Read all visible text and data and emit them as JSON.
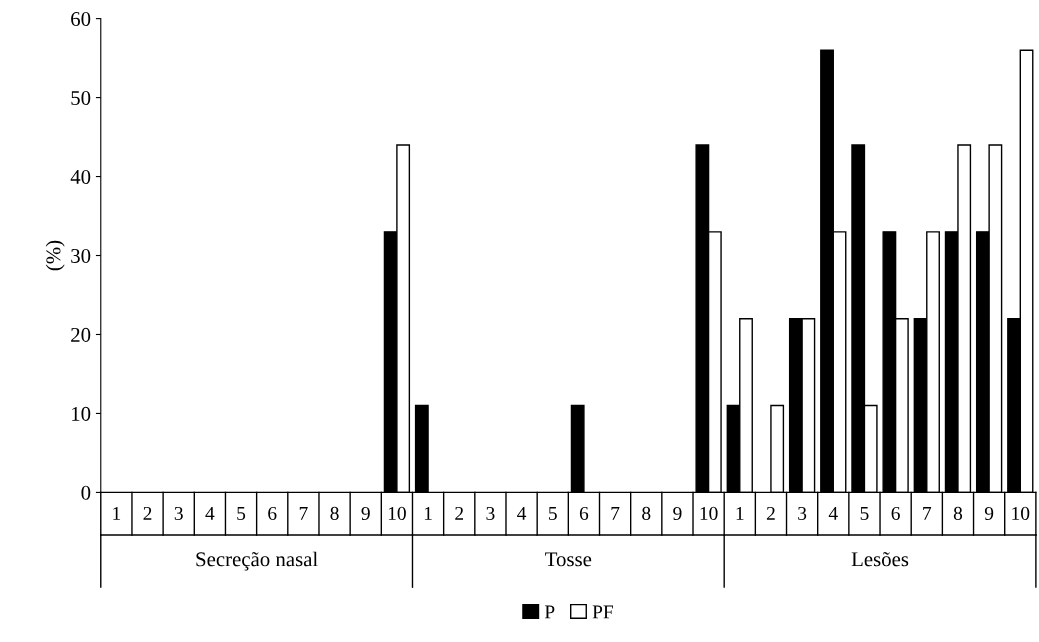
{
  "chart_data": {
    "type": "bar",
    "ylabel": "(%)",
    "categories": [
      "1",
      "2",
      "3",
      "4",
      "5",
      "6",
      "7",
      "8",
      "9",
      "10",
      "1",
      "2",
      "3",
      "4",
      "5",
      "6",
      "7",
      "8",
      "9",
      "10",
      "1",
      "2",
      "3",
      "4",
      "5",
      "6",
      "7",
      "8",
      "9",
      "10"
    ],
    "series": [
      {
        "name": "P",
        "color": "#000000",
        "values": [
          0,
          0,
          0,
          0,
          0,
          0,
          0,
          0,
          0,
          33,
          11,
          0,
          0,
          0,
          0,
          11,
          0,
          0,
          0,
          44,
          11,
          0,
          22,
          56,
          44,
          33,
          22,
          33,
          33,
          22
        ]
      },
      {
        "name": "PF",
        "color": "#ffffff",
        "values": [
          0,
          0,
          0,
          0,
          0,
          0,
          0,
          0,
          0,
          44,
          0,
          0,
          0,
          0,
          0,
          0,
          0,
          0,
          0,
          33,
          22,
          11,
          22,
          33,
          11,
          22,
          33,
          44,
          44,
          56
        ]
      }
    ],
    "annotations": [
      "Secreção nasal",
      "Tosse",
      "Lesões"
    ],
    "ylim": [
      0,
      60
    ],
    "yticks": [
      0,
      10,
      20,
      30,
      40,
      50,
      60
    ],
    "grid": false,
    "legend": "bottom"
  }
}
